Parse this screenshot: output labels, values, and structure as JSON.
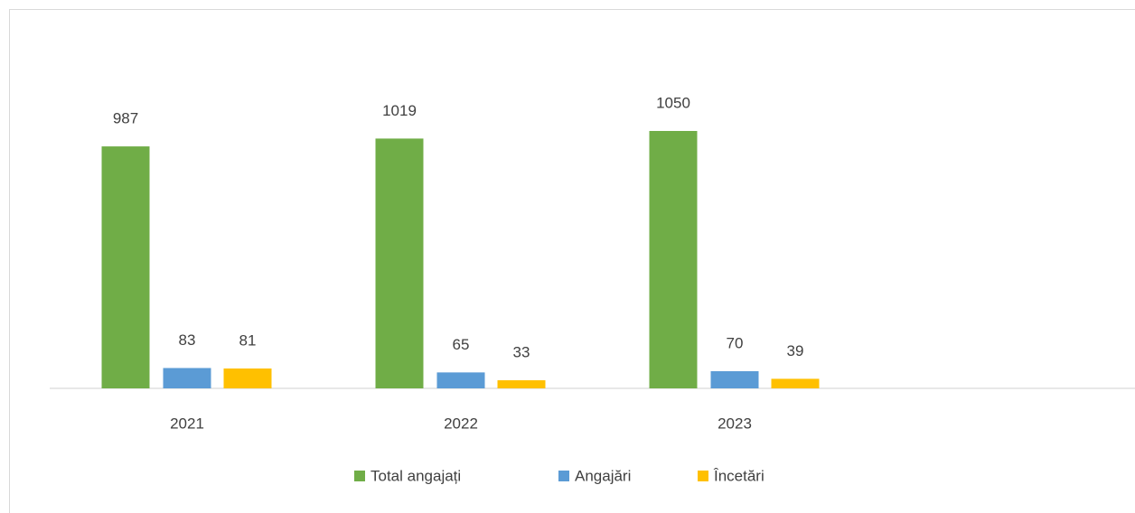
{
  "chart_data": {
    "type": "bar",
    "categories": [
      "2021",
      "2022",
      "2023"
    ],
    "series": [
      {
        "name": "Total angajați",
        "color": "#70ad47",
        "values": [
          987,
          1019,
          1050
        ]
      },
      {
        "name": "Angajări",
        "color": "#5b9bd5",
        "values": [
          83,
          65,
          70
        ]
      },
      {
        "name": "Încetări",
        "color": "#ffc000",
        "values": [
          81,
          33,
          39
        ]
      }
    ],
    "legend": "bottom"
  }
}
